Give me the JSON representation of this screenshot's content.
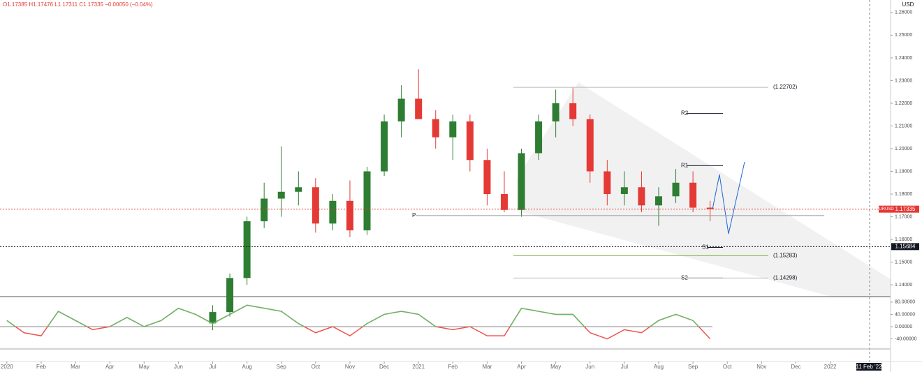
{
  "chart_data": [
    {
      "type": "candlestick",
      "legend": "O1.17385 H1.17476 L1.17311 C1.17335 −0.00050 (−0.04%)",
      "currency": "USD",
      "cursor_label": "11 Feb '22",
      "up_color": "#2e7d32",
      "down_color": "#e53935",
      "xlim": [
        -0.2,
        25.76
      ],
      "xticks": [
        {
          "value": 0,
          "label": "2020"
        },
        {
          "value": 1,
          "label": "Feb"
        },
        {
          "value": 2,
          "label": "Mar"
        },
        {
          "value": 3,
          "label": "Apr"
        },
        {
          "value": 4,
          "label": "May"
        },
        {
          "value": 5,
          "label": "Jun"
        },
        {
          "value": 6,
          "label": "Jul"
        },
        {
          "value": 7,
          "label": "Aug"
        },
        {
          "value": 8,
          "label": "Sep"
        },
        {
          "value": 9,
          "label": "Oct"
        },
        {
          "value": 10,
          "label": "Nov"
        },
        {
          "value": 11,
          "label": "Dec"
        },
        {
          "value": 12,
          "label": "2021"
        },
        {
          "value": 13,
          "label": "Feb"
        },
        {
          "value": 14,
          "label": "Mar"
        },
        {
          "value": 15,
          "label": "Apr"
        },
        {
          "value": 16,
          "label": "May"
        },
        {
          "value": 17,
          "label": "Jun"
        },
        {
          "value": 18,
          "label": "Jul"
        },
        {
          "value": 19,
          "label": "Aug"
        },
        {
          "value": 20,
          "label": "Sep"
        },
        {
          "value": 21,
          "label": "Oct"
        },
        {
          "value": 22,
          "label": "Nov"
        },
        {
          "value": 23,
          "label": "Dec"
        },
        {
          "value": 24,
          "label": "2022"
        }
      ],
      "ylim": [
        1.1348,
        1.2655
      ],
      "yticks": [
        {
          "value": 1.14,
          "label": "1.14000"
        },
        {
          "value": 1.15,
          "label": "1.15000"
        },
        {
          "value": 1.16,
          "label": "1.16000"
        },
        {
          "value": 1.17,
          "label": "1.17000"
        },
        {
          "value": 1.18,
          "label": "1.18000"
        },
        {
          "value": 1.19,
          "label": "1.19000"
        },
        {
          "value": 1.2,
          "label": "1.20000"
        },
        {
          "value": 1.21,
          "label": "1.21000"
        },
        {
          "value": 1.22,
          "label": "1.22000"
        },
        {
          "value": 1.23,
          "label": "1.23000"
        },
        {
          "value": 1.24,
          "label": "1.24000"
        },
        {
          "value": 1.25,
          "label": "1.25000"
        },
        {
          "value": 1.26,
          "label": "1.26000"
        }
      ],
      "x": [
        6,
        6.5,
        7,
        7.5,
        8,
        8.5,
        9,
        9.5,
        10,
        10.5,
        11,
        11.5,
        12,
        12.5,
        13,
        13.5,
        14,
        14.5,
        15,
        15.5,
        16,
        16.5,
        17,
        17.5,
        18,
        18.5,
        19,
        19.5,
        20,
        20.5
      ],
      "open": [
        1.123,
        1.128,
        1.143,
        1.168,
        1.178,
        1.181,
        1.183,
        1.167,
        1.177,
        1.164,
        1.19,
        1.212,
        1.222,
        1.213,
        1.205,
        1.212,
        1.195,
        1.18,
        1.173,
        1.198,
        1.212,
        1.22,
        1.213,
        1.19,
        1.18,
        1.183,
        1.175,
        1.179,
        1.185,
        1.174
      ],
      "high": [
        1.131,
        1.145,
        1.17,
        1.185,
        1.201,
        1.19,
        1.187,
        1.18,
        1.186,
        1.192,
        1.215,
        1.228,
        1.235,
        1.217,
        1.215,
        1.215,
        1.2,
        1.19,
        1.2,
        1.215,
        1.226,
        1.227,
        1.215,
        1.195,
        1.19,
        1.19,
        1.183,
        1.191,
        1.19,
        1.177
      ],
      "low": [
        1.12,
        1.126,
        1.14,
        1.165,
        1.17,
        1.175,
        1.163,
        1.164,
        1.161,
        1.162,
        1.188,
        1.205,
        1.214,
        1.2,
        1.195,
        1.19,
        1.175,
        1.172,
        1.17,
        1.195,
        1.205,
        1.21,
        1.185,
        1.175,
        1.175,
        1.172,
        1.166,
        1.176,
        1.172,
        1.168
      ],
      "close": [
        1.128,
        1.143,
        1.168,
        1.178,
        1.181,
        1.183,
        1.167,
        1.177,
        1.164,
        1.19,
        1.212,
        1.222,
        1.213,
        1.205,
        1.212,
        1.195,
        1.18,
        1.173,
        1.198,
        1.212,
        1.22,
        1.213,
        1.19,
        1.18,
        1.183,
        1.175,
        1.179,
        1.185,
        1.174,
        1.1734
      ],
      "price_lines": [
        {
          "name": "EURUSD",
          "value": 1.17335,
          "label": "1.17335",
          "color": "#e53935"
        },
        {
          "value": 1.15684,
          "label": "1.15684",
          "color": "#131722"
        }
      ],
      "annotations": [
        {
          "label": "(1.22702)",
          "value": 1.22702
        },
        {
          "label": "R2",
          "value": 1.2155
        },
        {
          "label": "R1",
          "value": 1.1925
        },
        {
          "label": "(1.15283)",
          "value": 1.15283
        },
        {
          "label": "S1",
          "value": 1.1565
        },
        {
          "label": "S2",
          "value": 1.143
        },
        {
          "label": "(1.14298)",
          "value": 1.14298
        },
        {
          "label": "P",
          "value": 1.1705
        }
      ]
    },
    {
      "type": "line",
      "color": "#66bb6a",
      "neg_color": "#ef5350",
      "xlim": [
        -0.2,
        25.76
      ],
      "ylim": [
        -73,
        98
      ],
      "yticks": [
        {
          "value": 80,
          "label": "80.00000"
        },
        {
          "value": 40,
          "label": "40.00000"
        },
        {
          "value": 0,
          "label": "0.00000"
        },
        {
          "value": -40,
          "label": "-40.00000"
        }
      ],
      "x": [
        0,
        0.5,
        1,
        1.5,
        2,
        2.5,
        3,
        3.5,
        4,
        4.5,
        5,
        5.5,
        6,
        6.5,
        7,
        7.5,
        8,
        8.5,
        9,
        9.5,
        10,
        10.5,
        11,
        11.5,
        12,
        12.5,
        13,
        13.5,
        14,
        14.5,
        15,
        15.5,
        16,
        16.5,
        17,
        17.5,
        18,
        18.5,
        19,
        19.5,
        20,
        20.5
      ],
      "values": [
        20,
        -20,
        -30,
        50,
        20,
        -10,
        0,
        30,
        0,
        20,
        60,
        40,
        10,
        40,
        70,
        60,
        50,
        10,
        -20,
        0,
        -30,
        10,
        40,
        50,
        40,
        0,
        -10,
        0,
        -30,
        -30,
        60,
        50,
        40,
        40,
        -20,
        -40,
        -10,
        -20,
        20,
        40,
        20,
        -40
      ]
    }
  ]
}
